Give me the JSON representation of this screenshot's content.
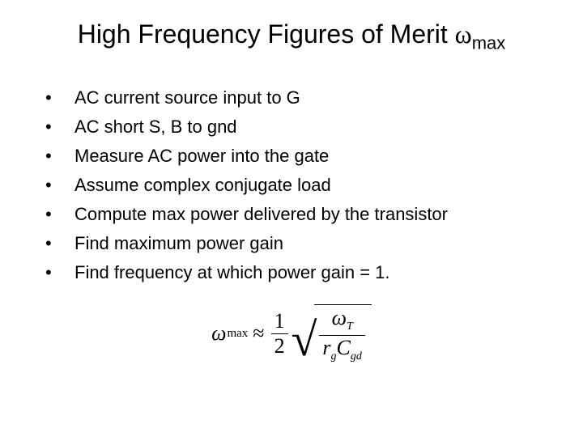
{
  "title": {
    "main": "High Frequency Figures of Merit ",
    "omega": "ω",
    "sub": "max"
  },
  "bullets": [
    "AC current source input to G",
    "AC short S, B to gnd",
    "Measure AC power into the gate",
    "Assume complex conjugate load",
    "Compute max power delivered by the transistor",
    "Find maximum power gain",
    "Find frequency at which power gain = 1."
  ],
  "equation": {
    "lhs_omega": "ω",
    "lhs_sub": "max",
    "approx": "≈",
    "half_num": "1",
    "half_den": "2",
    "rad_num_omega": "ω",
    "rad_num_sub": "T",
    "rad_den_r": "r",
    "rad_den_r_sub": "g",
    "rad_den_C": "C",
    "rad_den_C_sub": "gd"
  },
  "style": {
    "background": "#ffffff",
    "text_color": "#000000",
    "title_fontsize": 32,
    "bullet_fontsize": 22,
    "eq_fontsize": 26
  }
}
